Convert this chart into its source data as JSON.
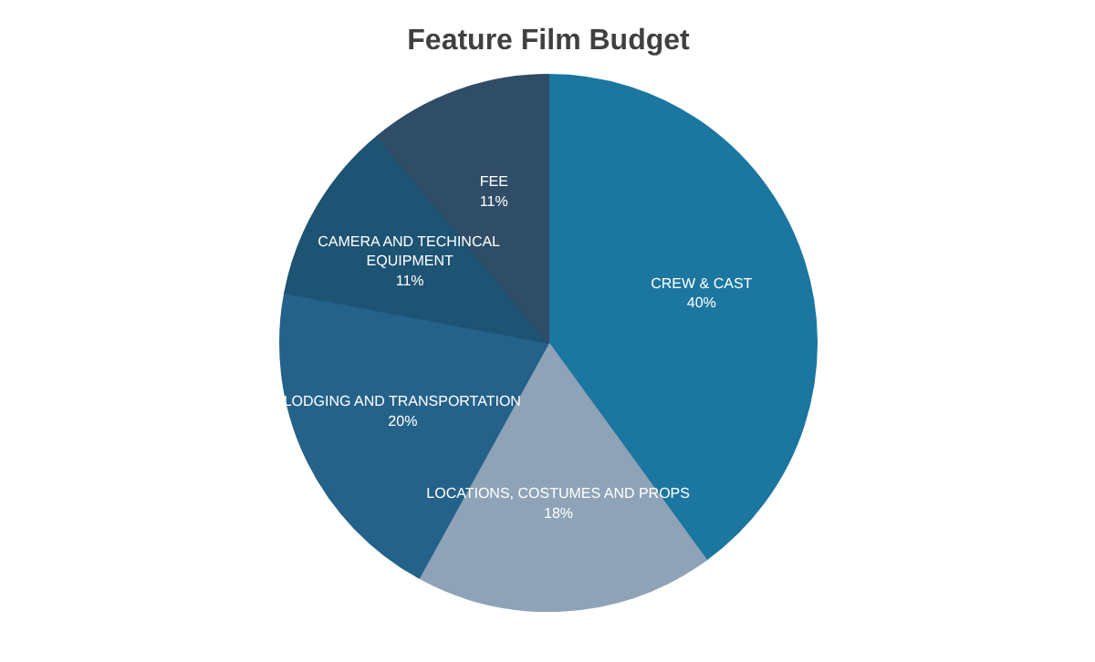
{
  "chart_data": {
    "type": "pie",
    "title": "Feature Film Budget",
    "categories": [
      "CREW & CAST",
      "LOCATIONS, COSTUMES AND PROPS",
      "LODGING AND TRANSPORTATION",
      "CAMERA AND TECHINCAL EQUIPMENT",
      "FEE"
    ],
    "values": [
      40,
      18,
      20,
      11,
      11
    ],
    "colors": [
      "#1b76a0",
      "#8ea3b7",
      "#25628a",
      "#1d5373",
      "#2f4d66"
    ],
    "value_labels": [
      "40%",
      "18%",
      "20%",
      "11%",
      "11%"
    ]
  }
}
